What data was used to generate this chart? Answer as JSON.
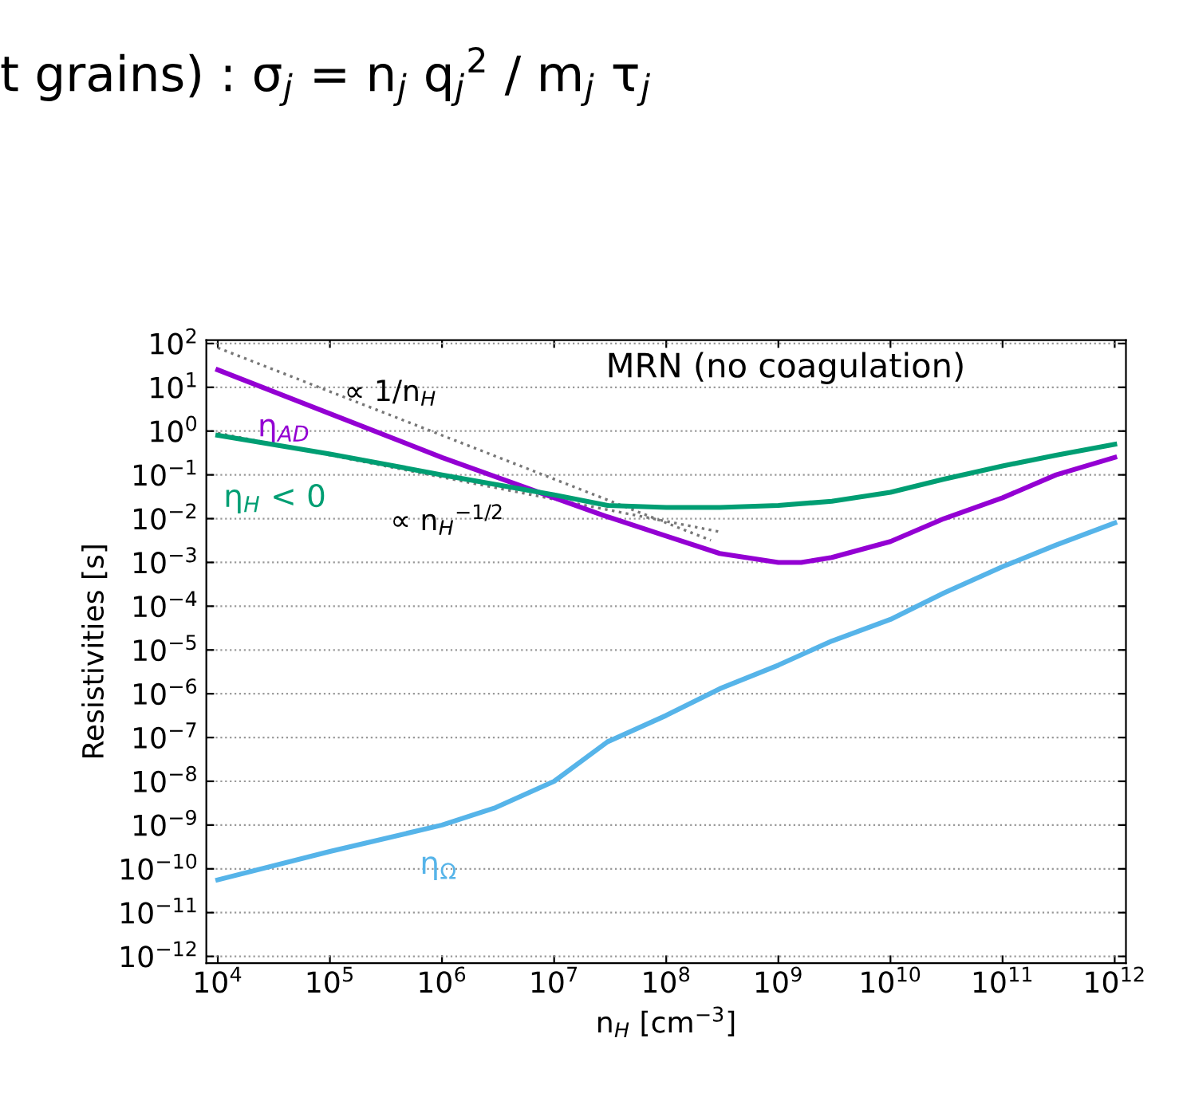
{
  "chart_data": {
    "type": "line",
    "xlabel": "n$_{H}$ [cm$^{−3}$]",
    "ylabel": "Resistivities [s]",
    "log": "xy",
    "grid": "y",
    "line_style": "solid",
    "marker": "none",
    "xlim": [
      7900.0,
      1260000000000.0
    ],
    "ylim": [
      7e-13,
      120.0
    ],
    "xticks": [
      {
        "value": 10000.0,
        "label": "10$^{4}$"
      },
      {
        "value": 100000.0,
        "label": "10$^{5}$"
      },
      {
        "value": 1000000.0,
        "label": "10$^{6}$"
      },
      {
        "value": 10000000.0,
        "label": "10$^{7}$"
      },
      {
        "value": 100000000.0,
        "label": "10$^{8}$"
      },
      {
        "value": 1000000000.0,
        "label": "10$^{9}$"
      },
      {
        "value": 10000000000.0,
        "label": "10$^{10}$"
      },
      {
        "value": 100000000000.0,
        "label": "10$^{11}$"
      },
      {
        "value": 1000000000000.0,
        "label": "10$^{12}$"
      }
    ],
    "yticks": [
      {
        "value": 100.0,
        "label": "10$^{2}$"
      },
      {
        "value": 10.0,
        "label": "10$^{1}$"
      },
      {
        "value": 1.0,
        "label": "10$^{0}$"
      },
      {
        "value": 0.1,
        "label": "10$^{−1}$"
      },
      {
        "value": 0.01,
        "label": "10$^{−2}$"
      },
      {
        "value": 0.001,
        "label": "10$^{−3}$"
      },
      {
        "value": 0.0001,
        "label": "10$^{−4}$"
      },
      {
        "value": 1e-05,
        "label": "10$^{−5}$"
      },
      {
        "value": 1e-06,
        "label": "10$^{−6}$"
      },
      {
        "value": 1e-07,
        "label": "10$^{−7}$"
      },
      {
        "value": 1e-08,
        "label": "10$^{−8}$"
      },
      {
        "value": 1e-09,
        "label": "10$^{−9}$"
      },
      {
        "value": 1e-10,
        "label": "10$^{−10}$"
      },
      {
        "value": 1e-11,
        "label": "10$^{−11}$"
      },
      {
        "value": 1e-12,
        "label": "10$^{−12}$"
      }
    ],
    "series": [
      {
        "name": "η$_{AD}$",
        "color": "#9400d3",
        "x": [
          10000.0,
          100000.0,
          1000000.0,
          10000000.0,
          30000000.0,
          100000000.0,
          300000000.0,
          1000000000.0,
          1600000000.0,
          3000000000.0,
          10000000000.0,
          30000000000.0,
          100000000000.0,
          300000000000.0,
          1000000000000.0
        ],
        "values": [
          25,
          2.5,
          0.25,
          0.03,
          0.011,
          0.004,
          0.0016,
          0.001,
          0.001,
          0.0013,
          0.003,
          0.01,
          0.03,
          0.1,
          0.25
        ]
      },
      {
        "name": "η$_{H}$ < 0",
        "color": "#009e73",
        "x": [
          10000.0,
          100000.0,
          1000000.0,
          10000000.0,
          30000000.0,
          100000000.0,
          300000000.0,
          1000000000.0,
          3000000000.0,
          10000000000.0,
          30000000000.0,
          100000000000.0,
          300000000000.0,
          1000000000000.0
        ],
        "values": [
          0.8,
          0.3,
          0.1,
          0.035,
          0.02,
          0.018,
          0.018,
          0.02,
          0.025,
          0.04,
          0.08,
          0.16,
          0.28,
          0.5
        ]
      },
      {
        "name": "η$_{Ω}$",
        "color": "#56b4e9",
        "x": [
          10000.0,
          100000.0,
          1000000.0,
          3000000.0,
          10000000.0,
          30000000.0,
          100000000.0,
          300000000.0,
          1000000000.0,
          3000000000.0,
          10000000000.0,
          30000000000.0,
          100000000000.0,
          300000000000.0,
          1000000000000.0
        ],
        "values": [
          5.6e-11,
          2.5e-10,
          1e-09,
          2.5e-09,
          1e-08,
          8e-08,
          3.2e-07,
          1.3e-06,
          4.5e-06,
          1.6e-05,
          5e-05,
          0.0002,
          0.0008,
          0.0025,
          0.008
        ]
      },
      {
        "type": "line",
        "color": "#777777",
        "line_style": "dotted",
        "x": [
          10000.0,
          250000000.0
        ],
        "values": [
          80,
          0.0032
        ]
      },
      {
        "type": "line",
        "color": "#777777",
        "line_style": "dotted",
        "x": [
          10000.0,
          300000000.0
        ],
        "values": [
          0.9,
          0.005
        ]
      }
    ],
    "annotations": [
      "t grains) : σ$_{j}$ = n$_{j}$ q$_{j}$$^{2}$ / m$_{j}$ τ$_{j}$",
      "MRN (no coagulation)",
      "∝ 1/n$_{H}$",
      "∝ n$_{H}$$^{−1/2}$"
    ]
  }
}
